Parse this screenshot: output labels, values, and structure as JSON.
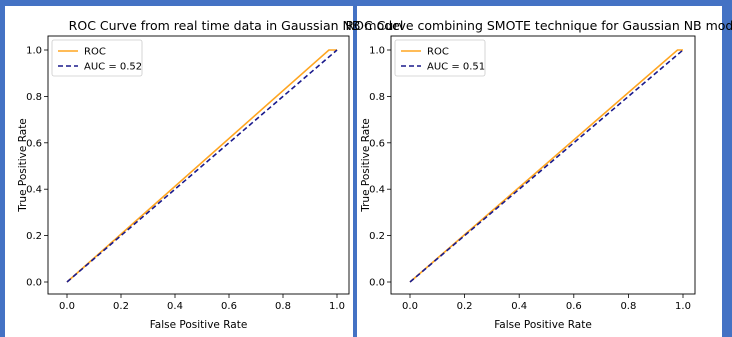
{
  "chart_data": [
    {
      "type": "line",
      "title": "ROC Curve from real time data in Gaussian NB model",
      "xlabel": "False Positive Rate",
      "ylabel": "True Positive Rate",
      "xlim": [
        0.0,
        1.0
      ],
      "ylim": [
        0.0,
        1.0
      ],
      "x_ticks": [
        "0.0",
        "0.2",
        "0.4",
        "0.6",
        "0.8",
        "1.0"
      ],
      "y_ticks": [
        "0.0",
        "0.2",
        "0.4",
        "0.6",
        "0.8",
        "1.0"
      ],
      "grid": false,
      "legend_position": "upper left",
      "series": [
        {
          "name": "ROC",
          "color": "#ffa520",
          "style": "solid",
          "x": [
            0.0,
            0.97,
            1.0
          ],
          "y": [
            0.0,
            1.0,
            1.0
          ]
        },
        {
          "name": "AUC = 0.52",
          "color": "#1a1a8c",
          "style": "dashed",
          "x": [
            0.0,
            1.0
          ],
          "y": [
            0.0,
            1.0
          ]
        }
      ]
    },
    {
      "type": "line",
      "title": "ROC Curve combining SMOTE technique for Gaussian NB model",
      "xlabel": "False Positive Rate",
      "ylabel": "True Positive Rate",
      "xlim": [
        0.0,
        1.0
      ],
      "ylim": [
        0.0,
        1.0
      ],
      "x_ticks": [
        "0.0",
        "0.2",
        "0.4",
        "0.6",
        "0.8",
        "1.0"
      ],
      "y_ticks": [
        "0.0",
        "0.2",
        "0.4",
        "0.6",
        "0.8",
        "1.0"
      ],
      "grid": false,
      "legend_position": "upper left",
      "series": [
        {
          "name": "ROC",
          "color": "#ffa520",
          "style": "solid",
          "x": [
            0.0,
            0.98,
            1.0
          ],
          "y": [
            0.0,
            1.0,
            1.0
          ]
        },
        {
          "name": "AUC = 0.51",
          "color": "#1a1a8c",
          "style": "dashed",
          "x": [
            0.0,
            1.0
          ],
          "y": [
            0.0,
            1.0
          ]
        }
      ]
    }
  ],
  "frame_color": "#4472c4"
}
